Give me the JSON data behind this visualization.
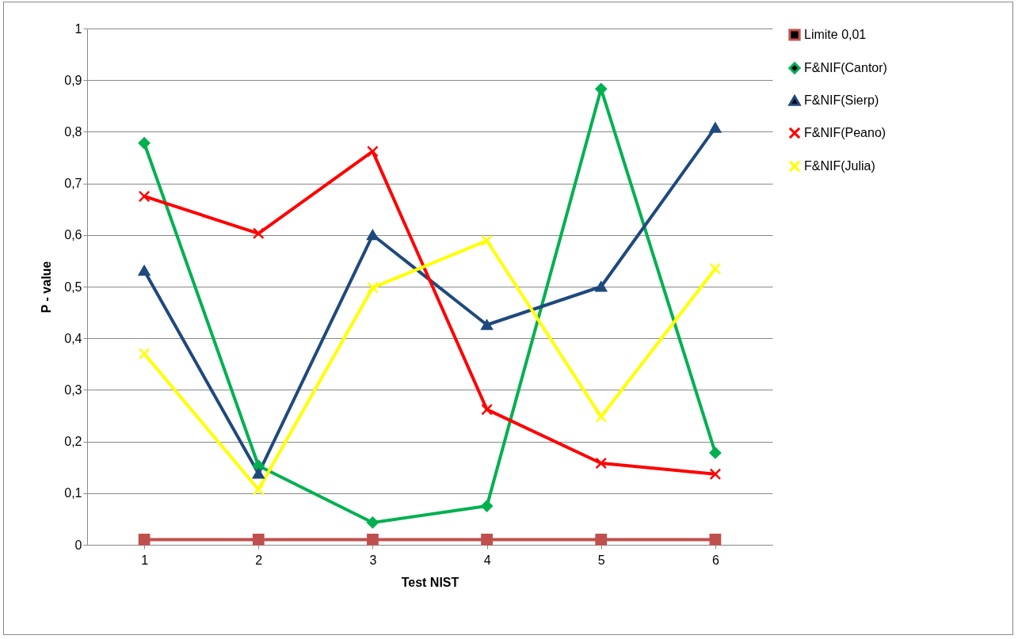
{
  "chart_data": {
    "type": "line",
    "xlabel": "Test NIST",
    "ylabel": "P - value",
    "categories": [
      "1",
      "2",
      "3",
      "4",
      "5",
      "6"
    ],
    "ylim": [
      0,
      1
    ],
    "yticks": [
      {
        "value": 0,
        "label": "0"
      },
      {
        "value": 0.1,
        "label": "0,1"
      },
      {
        "value": 0.2,
        "label": "0,2"
      },
      {
        "value": 0.3,
        "label": "0,3"
      },
      {
        "value": 0.4,
        "label": "0,4"
      },
      {
        "value": 0.5,
        "label": "0,5"
      },
      {
        "value": 0.6,
        "label": "0,6"
      },
      {
        "value": 0.7,
        "label": "0,7"
      },
      {
        "value": 0.8,
        "label": "0,8"
      },
      {
        "value": 0.9,
        "label": "0,9"
      },
      {
        "value": 1,
        "label": "1"
      }
    ],
    "grid": "y",
    "legend": "right",
    "series": [
      {
        "name": "Limite 0,01",
        "color": "#c0504d",
        "marker": "square",
        "values": [
          0.01,
          0.01,
          0.01,
          0.01,
          0.01,
          0.01
        ]
      },
      {
        "name": "F&NIF(Cantor)",
        "color": "#00b050",
        "marker": "diamond",
        "values": [
          0.778,
          0.153,
          0.043,
          0.075,
          0.883,
          0.178
        ]
      },
      {
        "name": "F&NIF(Sierp)",
        "color": "#1f497d",
        "marker": "triangle",
        "values": [
          0.531,
          0.138,
          0.6,
          0.426,
          0.5,
          0.808
        ]
      },
      {
        "name": "F&NIF(Peano)",
        "color": "#ff0000",
        "marker": "cross",
        "values": [
          0.675,
          0.603,
          0.762,
          0.262,
          0.158,
          0.137
        ]
      },
      {
        "name": "F&NIF(Julia)",
        "color": "#ffff00",
        "marker": "cross",
        "values": [
          0.37,
          0.107,
          0.498,
          0.589,
          0.248,
          0.535
        ]
      }
    ]
  }
}
